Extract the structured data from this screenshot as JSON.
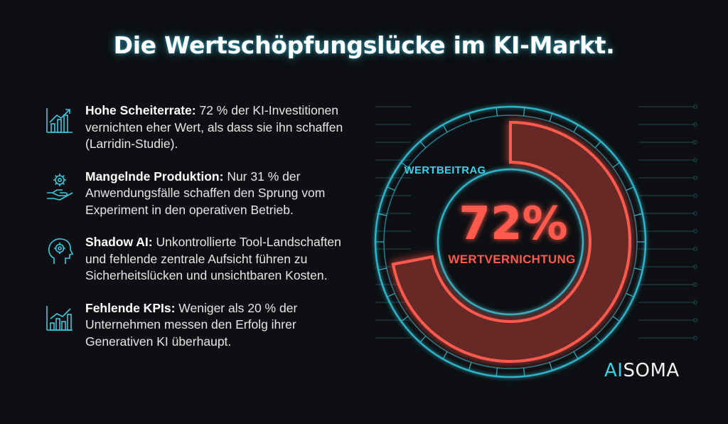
{
  "title": "Die Wertschöpfungslücke im KI-Markt.",
  "items": [
    {
      "heading": "Hohe Scheiterrate:",
      "text": " 72 % der KI-Investitionen vernichten eher Wert, als dass sie ihn schaffen (Larridin-Studie).",
      "icon": "chart-trend-icon"
    },
    {
      "heading": "Mangelnde Produktion:",
      "text": " Nur 31 % der Anwendungsfälle schaffen den Sprung vom Experiment in den operativen Betrieb.",
      "icon": "gear-hand-icon"
    },
    {
      "heading": "Shadow AI:",
      "text": " Unkontrollierte Tool-Landschaften und fehlende zentrale Aufsicht führen zu Sicherheitslücken und unsichtbaren Kosten.",
      "icon": "head-gear-icon"
    },
    {
      "heading": "Fehlende KPIs:",
      "text": " Weniger als 20 % der Unternehmen messen den Erfolg ihrer Generativen KI überhaupt.",
      "icon": "bar-chart-icon"
    }
  ],
  "chart_data": {
    "type": "pie",
    "labels": [
      "WERTBEITRAG",
      "WERTVERNICHTUNG"
    ],
    "values": [
      28,
      72
    ],
    "center_value": "72%",
    "colors": {
      "WERTBEITRAG": "#2fb3c8",
      "WERTVERNICHTUNG": "#ff5a4e"
    }
  },
  "logo": {
    "part1": "AI",
    "part2": "SOMA"
  },
  "colors": {
    "accent": "#3fd0e8",
    "negative": "#ff5a4e",
    "background": "#0d0f12"
  }
}
